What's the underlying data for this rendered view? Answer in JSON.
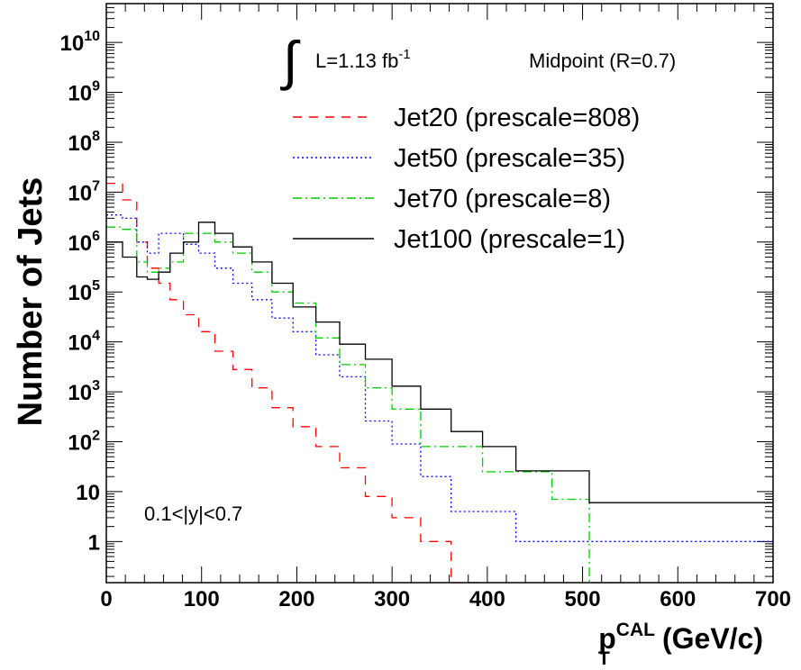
{
  "chart_data": {
    "type": "line",
    "title": "",
    "xlabel": {
      "main": "p",
      "sub": "T",
      "sup": "CAL",
      "unit": "(GeV/c)"
    },
    "ylabel": "Number of Jets",
    "xlim": [
      0,
      700
    ],
    "ylim": [
      0.15,
      60000000000.0
    ],
    "log_y": true,
    "grid": false,
    "x_ticks": [
      0,
      100,
      200,
      300,
      400,
      500,
      600,
      700
    ],
    "x_tick_labels": [
      "0",
      "100",
      "200",
      "300",
      "400",
      "500",
      "600",
      "700"
    ],
    "y_ticks": [
      {
        "value": 1,
        "base": "1",
        "exp": ""
      },
      {
        "value": 10,
        "base": "10",
        "exp": ""
      },
      {
        "value": 100,
        "base": "10",
        "exp": "2"
      },
      {
        "value": 1000,
        "base": "10",
        "exp": "3"
      },
      {
        "value": 10000,
        "base": "10",
        "exp": "4"
      },
      {
        "value": 100000,
        "base": "10",
        "exp": "5"
      },
      {
        "value": 1000000,
        "base": "10",
        "exp": "6"
      },
      {
        "value": 10000000,
        "base": "10",
        "exp": "7"
      },
      {
        "value": 100000000,
        "base": "10",
        "exp": "8"
      },
      {
        "value": 1000000000,
        "base": "10",
        "exp": "9"
      },
      {
        "value": 10000000000,
        "base": "10",
        "exp": "10"
      }
    ],
    "bin_edges": [
      0,
      17,
      32,
      43,
      55,
      67,
      81,
      97,
      114,
      133,
      153,
      174,
      196,
      220,
      245,
      272,
      300,
      330,
      362,
      395,
      430,
      468,
      507,
      548,
      592,
      638,
      700
    ],
    "series": [
      {
        "name": "Jet20 (prescale=808)",
        "color": "#ff0000",
        "dash": "10,8",
        "edges": [
          0,
          17,
          32,
          43,
          55,
          67,
          81,
          97,
          114,
          133,
          153,
          174,
          196,
          220,
          245,
          272,
          300,
          330,
          362,
          395
        ],
        "values": [
          15000000.0,
          7000000.0,
          1000000.0,
          300000.0,
          150000.0,
          70000.0,
          35000.0,
          16000.0,
          6500.0,
          2800.0,
          1200.0,
          480,
          200,
          80,
          30,
          8,
          3,
          1,
          0.1
        ]
      },
      {
        "name": "Jet50 (prescale=35)",
        "color": "#0000ff",
        "dash": "2,3",
        "edges": [
          0,
          17,
          32,
          43,
          55,
          67,
          81,
          97,
          114,
          133,
          153,
          174,
          196,
          220,
          245,
          272,
          300,
          330,
          362,
          395,
          430,
          468,
          700
        ],
        "values": [
          3500000.0,
          3000000.0,
          1000000.0,
          600000.0,
          1500000.0,
          1500000.0,
          900000.0,
          600000.0,
          300000.0,
          150000.0,
          70000.0,
          30000.0,
          16000.0,
          5500.0,
          2000.0,
          260,
          90,
          20,
          4,
          4,
          1,
          1
        ]
      },
      {
        "name": "Jet70 (prescale=8)",
        "color": "#00cc00",
        "dash": "10,4,2,4",
        "edges": [
          0,
          17,
          32,
          43,
          55,
          67,
          81,
          97,
          114,
          133,
          153,
          174,
          196,
          220,
          245,
          272,
          300,
          330,
          362,
          395,
          430,
          468,
          507,
          548
        ],
        "values": [
          2000000.0,
          1800000.0,
          400000.0,
          250000.0,
          300000.0,
          400000.0,
          1500000.0,
          1500000.0,
          1000000.0,
          600000.0,
          250000.0,
          100000.0,
          60000.0,
          12000.0,
          3500.0,
          1200.0,
          450,
          80,
          80,
          25,
          25,
          7,
          0.1
        ]
      },
      {
        "name": "Jet100 (prescale=1)",
        "color": "#000000",
        "dash": "",
        "edges": [
          0,
          17,
          32,
          43,
          55,
          67,
          81,
          97,
          114,
          133,
          153,
          174,
          196,
          220,
          245,
          272,
          300,
          330,
          362,
          395,
          430,
          468,
          507,
          548,
          700
        ],
        "values": [
          1000000.0,
          500000.0,
          200000.0,
          180000.0,
          250000.0,
          600000.0,
          1000000.0,
          2500000.0,
          1500000.0,
          800000.0,
          400000.0,
          150000.0,
          50000.0,
          25000.0,
          9000.0,
          4500.0,
          1300.0,
          450,
          160,
          80,
          26,
          26,
          6,
          6
        ]
      }
    ],
    "legend_placement": "top-right",
    "annotations": {
      "luminosity_symbol": "∫",
      "luminosity_text": "L=1.13 fb",
      "luminosity_sup": "-1",
      "algorithm": "Midpoint (R=0.7)",
      "rapidity": "0.1<|y|<0.7"
    }
  }
}
